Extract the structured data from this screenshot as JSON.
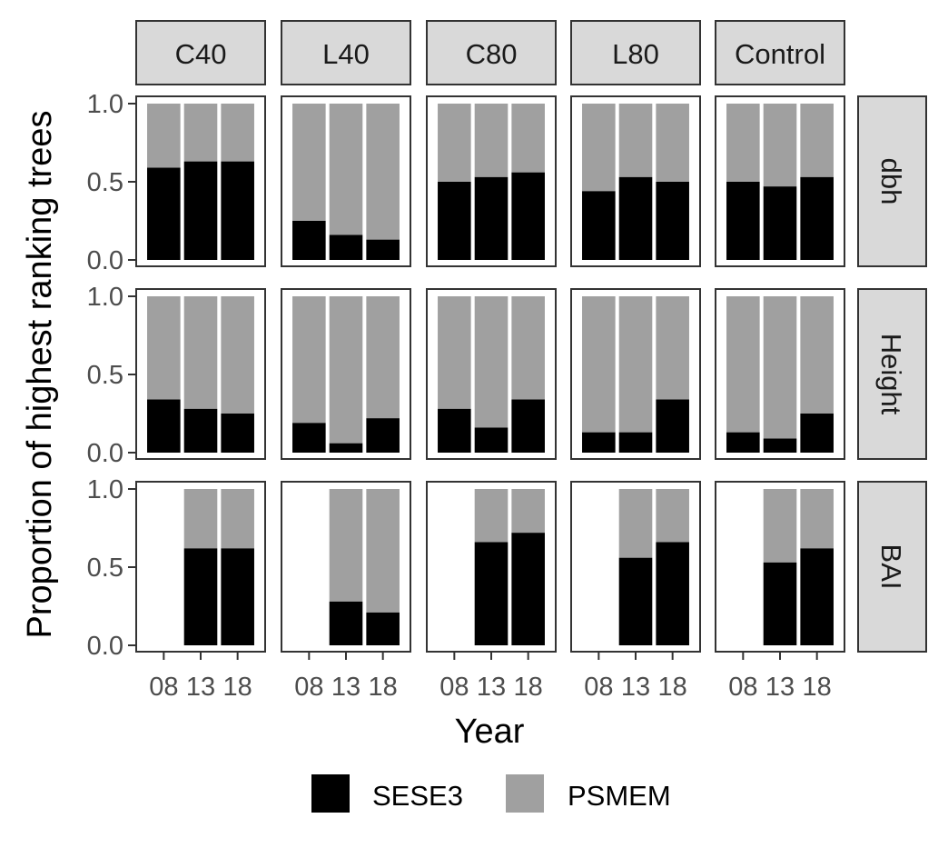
{
  "chart_data": {
    "type": "bar",
    "stacked": true,
    "xlabel": "Year",
    "ylabel": "Proportion of highest ranking trees",
    "ylim": [
      0,
      1
    ],
    "yticks": [
      "0.0",
      "0.5",
      "1.0"
    ],
    "categories": [
      "08",
      "13",
      "18"
    ],
    "column_facets": [
      "C40",
      "L40",
      "C80",
      "L80",
      "Control"
    ],
    "row_facets": [
      "dbh",
      "Height",
      "BAI"
    ],
    "legend": {
      "position": "bottom",
      "entries": [
        {
          "name": "SESE3",
          "color": "#000000"
        },
        {
          "name": "PSMEM",
          "color": "#a0a0a0"
        }
      ]
    },
    "colors": {
      "SESE3": "#000000",
      "PSMEM": "#a0a0a0"
    },
    "sese3_proportion": {
      "dbh": {
        "C40": [
          0.59,
          0.63,
          0.63
        ],
        "L40": [
          0.25,
          0.16,
          0.13
        ],
        "C80": [
          0.5,
          0.53,
          0.56
        ],
        "L80": [
          0.44,
          0.53,
          0.5
        ],
        "Control": [
          0.5,
          0.47,
          0.53
        ]
      },
      "Height": {
        "C40": [
          0.34,
          0.28,
          0.25
        ],
        "L40": [
          0.19,
          0.06,
          0.22
        ],
        "C80": [
          0.28,
          0.16,
          0.34
        ],
        "L80": [
          0.13,
          0.13,
          0.34
        ],
        "Control": [
          0.13,
          0.09,
          0.25
        ]
      },
      "BAI": {
        "C40": [
          null,
          0.62,
          0.62
        ],
        "L40": [
          null,
          0.28,
          0.21
        ],
        "C80": [
          null,
          0.66,
          0.72
        ],
        "L80": [
          null,
          0.56,
          0.66
        ],
        "Control": [
          null,
          0.53,
          0.62
        ]
      }
    }
  }
}
